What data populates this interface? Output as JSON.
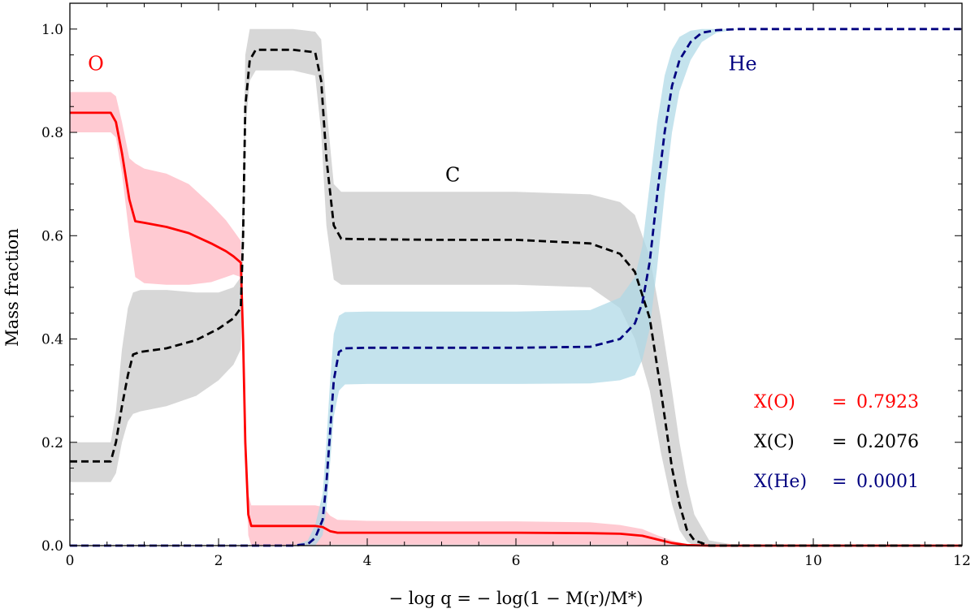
{
  "chart_data": {
    "type": "line",
    "title": "",
    "xlabel": "− log q = − log(1 − M(r)/M*)",
    "ylabel": "Mass fraction",
    "xlim": [
      0,
      12
    ],
    "ylim": [
      0,
      1.05
    ],
    "xticks": [
      0,
      2,
      4,
      6,
      8,
      10,
      12
    ],
    "yticks": [
      0.0,
      0.2,
      0.4,
      0.6,
      0.8,
      1.0
    ],
    "xtick_labels": [
      "0",
      "2",
      "4",
      "6",
      "8",
      "10",
      "12"
    ],
    "ytick_labels": [
      "0.0",
      "0.2",
      "0.4",
      "0.6",
      "0.8",
      "1.0"
    ],
    "grid": false,
    "series": [
      {
        "name": "O",
        "label": "O",
        "color": "#ff0000",
        "band_color": "#ffb6c1",
        "linestyle": "solid",
        "x": [
          0,
          0.55,
          0.62,
          0.7,
          0.8,
          0.88,
          1.0,
          1.3,
          1.6,
          1.9,
          2.1,
          2.2,
          2.3,
          2.33,
          2.36,
          2.4,
          2.44,
          3.0,
          3.3,
          3.4,
          3.5,
          3.6,
          4.0,
          5.0,
          6.0,
          7.0,
          7.4,
          7.7,
          7.9,
          8.1,
          8.3,
          8.6,
          9.0,
          10.0,
          12.0
        ],
        "values": [
          0.838,
          0.838,
          0.82,
          0.76,
          0.67,
          0.628,
          0.625,
          0.617,
          0.605,
          0.585,
          0.57,
          0.56,
          0.548,
          0.4,
          0.2,
          0.06,
          0.038,
          0.038,
          0.038,
          0.036,
          0.028,
          0.025,
          0.025,
          0.025,
          0.025,
          0.024,
          0.023,
          0.019,
          0.012,
          0.005,
          0.001,
          0.0,
          0.0,
          0.0,
          0.0
        ],
        "lower": [
          0.8,
          0.8,
          0.79,
          0.72,
          0.6,
          0.52,
          0.508,
          0.505,
          0.505,
          0.51,
          0.52,
          0.525,
          0.52,
          0.38,
          0.16,
          0.02,
          0.0,
          0.0,
          0.0,
          0.0,
          0.002,
          0.002,
          0.002,
          0.002,
          0.002,
          0.002,
          0.002,
          0.001,
          0.0,
          0.0,
          0.0,
          0.0,
          0.0,
          0.0,
          0.0
        ],
        "upper": [
          0.878,
          0.878,
          0.87,
          0.82,
          0.75,
          0.74,
          0.73,
          0.72,
          0.7,
          0.66,
          0.63,
          0.61,
          0.59,
          0.45,
          0.25,
          0.1,
          0.078,
          0.078,
          0.078,
          0.075,
          0.058,
          0.05,
          0.048,
          0.047,
          0.047,
          0.045,
          0.04,
          0.032,
          0.02,
          0.01,
          0.003,
          0.0,
          0.0,
          0.0,
          0.0
        ]
      },
      {
        "name": "C",
        "label": "C",
        "color": "#000000",
        "band_color": "#c8c8c8",
        "linestyle": "dashed",
        "x": [
          0,
          0.55,
          0.62,
          0.7,
          0.78,
          0.85,
          0.95,
          1.3,
          1.7,
          2.0,
          2.2,
          2.3,
          2.33,
          2.36,
          2.42,
          2.5,
          3.0,
          3.3,
          3.38,
          3.45,
          3.55,
          3.65,
          4.0,
          5.0,
          6.0,
          7.0,
          7.4,
          7.6,
          7.8,
          7.95,
          8.1,
          8.2,
          8.3,
          8.4,
          8.6,
          9.0,
          10.0,
          12.0
        ],
        "values": [
          0.163,
          0.163,
          0.2,
          0.27,
          0.33,
          0.37,
          0.375,
          0.382,
          0.398,
          0.42,
          0.44,
          0.46,
          0.6,
          0.85,
          0.94,
          0.96,
          0.96,
          0.955,
          0.9,
          0.75,
          0.62,
          0.594,
          0.593,
          0.592,
          0.592,
          0.585,
          0.565,
          0.53,
          0.44,
          0.3,
          0.15,
          0.08,
          0.03,
          0.01,
          0.0,
          0.0,
          0.0,
          0.0
        ],
        "lower": [
          0.123,
          0.123,
          0.14,
          0.2,
          0.24,
          0.255,
          0.26,
          0.27,
          0.29,
          0.32,
          0.35,
          0.38,
          0.55,
          0.8,
          0.9,
          0.92,
          0.92,
          0.91,
          0.8,
          0.62,
          0.515,
          0.505,
          0.505,
          0.505,
          0.505,
          0.5,
          0.46,
          0.4,
          0.3,
          0.18,
          0.08,
          0.03,
          0.008,
          0.0,
          0.0,
          0.0,
          0.0,
          0.0
        ],
        "upper": [
          0.2,
          0.2,
          0.26,
          0.38,
          0.46,
          0.49,
          0.495,
          0.495,
          0.49,
          0.49,
          0.5,
          0.52,
          0.7,
          0.95,
          1.0,
          1.0,
          1.0,
          0.995,
          0.98,
          0.85,
          0.7,
          0.685,
          0.685,
          0.685,
          0.685,
          0.68,
          0.665,
          0.64,
          0.56,
          0.44,
          0.3,
          0.2,
          0.12,
          0.06,
          0.01,
          0.0,
          0.0,
          0.0
        ]
      },
      {
        "name": "He",
        "label": "He",
        "color": "#000080",
        "band_color": "#add8e6",
        "linestyle": "dashed",
        "x": [
          0,
          3.0,
          3.2,
          3.3,
          3.4,
          3.45,
          3.5,
          3.55,
          3.62,
          3.7,
          4.0,
          5.0,
          6.0,
          7.0,
          7.4,
          7.6,
          7.7,
          7.8,
          7.9,
          8.0,
          8.1,
          8.2,
          8.35,
          8.5,
          8.7,
          9.0,
          10.0,
          12.0
        ],
        "values": [
          0.0,
          0.0,
          0.003,
          0.015,
          0.05,
          0.12,
          0.22,
          0.32,
          0.375,
          0.382,
          0.383,
          0.383,
          0.383,
          0.385,
          0.4,
          0.43,
          0.47,
          0.55,
          0.68,
          0.8,
          0.89,
          0.94,
          0.975,
          0.993,
          0.998,
          1.0,
          1.0,
          1.0
        ],
        "lower": [
          0.0,
          0.0,
          0.0,
          0.0,
          0.02,
          0.07,
          0.16,
          0.25,
          0.3,
          0.312,
          0.313,
          0.313,
          0.313,
          0.314,
          0.32,
          0.33,
          0.36,
          0.42,
          0.54,
          0.68,
          0.8,
          0.88,
          0.94,
          0.975,
          0.993,
          1.0,
          1.0,
          1.0
        ],
        "upper": [
          0.0,
          0.0,
          0.01,
          0.04,
          0.1,
          0.2,
          0.32,
          0.41,
          0.445,
          0.452,
          0.453,
          0.453,
          0.453,
          0.456,
          0.48,
          0.52,
          0.58,
          0.7,
          0.82,
          0.91,
          0.96,
          0.985,
          0.997,
          1.0,
          1.0,
          1.0,
          1.0,
          1.0
        ]
      }
    ],
    "annotations": {
      "labels": [
        {
          "text": "O",
          "color": "#ff0000",
          "x": 0.35,
          "y": 0.92
        },
        {
          "text": "C",
          "color": "#000000",
          "x": 5.15,
          "y": 0.705
        },
        {
          "text": "He",
          "color": "#000080",
          "x": 9.05,
          "y": 0.92
        }
      ],
      "legend": [
        {
          "name": "X(O)",
          "value": "0.7923",
          "color": "#ff0000"
        },
        {
          "name": "X(C)",
          "value": "0.2076",
          "color": "#000000"
        },
        {
          "name": "X(He)",
          "value": "0.0001",
          "color": "#000080"
        }
      ],
      "legend_equals": "=",
      "legend_position": "lower-right"
    }
  }
}
